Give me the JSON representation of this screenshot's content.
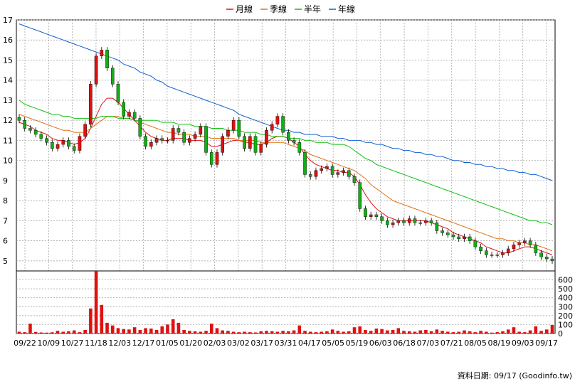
{
  "chart_data": [
    {
      "type": "candlestick",
      "title": "",
      "legend": {
        "placement": "top-center",
        "items": [
          {
            "label": "月線",
            "color": "#e01010"
          },
          {
            "label": "季線",
            "color": "#e07010"
          },
          {
            "label": "半年",
            "color": "#10c010"
          },
          {
            "label": "年線",
            "color": "#1060d0"
          }
        ]
      },
      "ylim": [
        4.5,
        17
      ],
      "yticks": [
        "5",
        "6",
        "7",
        "8",
        "9",
        "10",
        "11",
        "12",
        "13",
        "14",
        "15",
        "16",
        "17"
      ],
      "xticks": [
        "09/22",
        "10/09",
        "10/27",
        "11/18",
        "12/03",
        "12/17",
        "01/05",
        "01/20",
        "02/03",
        "03/02",
        "03/17",
        "03/31",
        "04/17",
        "05/05",
        "05/19",
        "06/03",
        "06/18",
        "07/03",
        "07/21",
        "08/05",
        "08/19",
        "09/03",
        "09/17"
      ],
      "grid": true,
      "up_color": "#e01010",
      "down_color": "#10b010",
      "price_close": [
        12.0,
        11.6,
        11.5,
        11.3,
        11.1,
        10.9,
        10.6,
        10.8,
        11.0,
        10.7,
        10.5,
        11.2,
        11.8,
        13.8,
        15.2,
        15.5,
        14.6,
        13.8,
        12.9,
        12.2,
        12.4,
        12.1,
        11.2,
        10.7,
        10.9,
        11.1,
        11.0,
        11.0,
        11.6,
        11.4,
        10.9,
        11.1,
        11.3,
        11.7,
        10.4,
        9.8,
        10.4,
        11.2,
        11.5,
        12.0,
        11.2,
        10.6,
        11.2,
        10.4,
        10.8,
        11.5,
        11.8,
        12.2,
        11.4,
        11.0,
        10.9,
        10.4,
        9.3,
        9.2,
        9.5,
        9.6,
        9.7,
        9.3,
        9.4,
        9.5,
        9.2,
        8.9,
        7.6,
        7.2,
        7.3,
        7.2,
        7.0,
        6.8,
        6.9,
        7.0,
        6.9,
        7.1,
        6.9,
        6.9,
        7.0,
        6.9,
        6.5,
        6.4,
        6.3,
        6.2,
        6.1,
        6.2,
        6.0,
        5.7,
        5.5,
        5.3,
        5.3,
        5.3,
        5.4,
        5.6,
        5.8,
        5.9,
        6.0,
        5.8,
        5.4,
        5.2,
        5.1,
        5.0
      ],
      "ma_month": [
        11.9,
        11.8,
        11.7,
        11.5,
        11.4,
        11.3,
        11.1,
        11.0,
        11.0,
        10.9,
        10.8,
        10.9,
        11.1,
        11.6,
        12.2,
        12.8,
        13.1,
        13.1,
        12.9,
        12.6,
        12.3,
        12.0,
        11.7,
        11.4,
        11.2,
        11.1,
        11.0,
        11.0,
        11.1,
        11.1,
        11.1,
        11.0,
        11.0,
        11.0,
        10.9,
        10.7,
        10.7,
        10.8,
        10.9,
        11.0,
        11.0,
        10.9,
        10.9,
        10.8,
        10.8,
        10.9,
        11.1,
        11.2,
        11.2,
        11.1,
        10.9,
        10.7,
        10.3,
        10.0,
        9.8,
        9.7,
        9.6,
        9.5,
        9.5,
        9.4,
        9.4,
        9.2,
        8.8,
        8.3,
        7.9,
        7.6,
        7.4,
        7.2,
        7.1,
        7.0,
        7.0,
        7.0,
        7.0,
        7.0,
        7.0,
        6.9,
        6.8,
        6.7,
        6.6,
        6.4,
        6.3,
        6.2,
        6.1,
        6.0,
        5.9,
        5.7,
        5.6,
        5.5,
        5.4,
        5.4,
        5.5,
        5.6,
        5.7,
        5.7,
        5.6,
        5.5,
        5.4,
        5.3
      ],
      "ma_quarter": [
        12.3,
        12.2,
        12.1,
        12.0,
        11.9,
        11.8,
        11.7,
        11.6,
        11.5,
        11.5,
        11.4,
        11.4,
        11.4,
        11.6,
        11.8,
        12.0,
        12.2,
        12.2,
        12.2,
        12.1,
        12.1,
        12.0,
        11.9,
        11.8,
        11.7,
        11.6,
        11.5,
        11.4,
        11.4,
        11.3,
        11.3,
        11.3,
        11.2,
        11.2,
        11.2,
        11.1,
        11.1,
        11.1,
        11.1,
        11.1,
        11.0,
        11.0,
        11.0,
        11.0,
        10.9,
        10.9,
        10.9,
        10.9,
        10.9,
        10.8,
        10.7,
        10.6,
        10.5,
        10.3,
        10.2,
        10.1,
        10.0,
        9.9,
        9.8,
        9.7,
        9.6,
        9.5,
        9.3,
        9.1,
        8.8,
        8.6,
        8.4,
        8.2,
        8.0,
        7.9,
        7.8,
        7.7,
        7.6,
        7.5,
        7.4,
        7.3,
        7.2,
        7.1,
        7.0,
        6.9,
        6.8,
        6.7,
        6.6,
        6.5,
        6.4,
        6.3,
        6.2,
        6.1,
        6.1,
        6.0,
        6.0,
        5.9,
        5.9,
        5.8,
        5.8,
        5.7,
        5.6,
        5.5
      ],
      "ma_half_year": [
        13.0,
        12.8,
        12.7,
        12.6,
        12.5,
        12.4,
        12.3,
        12.3,
        12.2,
        12.2,
        12.1,
        12.1,
        12.1,
        12.1,
        12.1,
        12.2,
        12.2,
        12.2,
        12.1,
        12.1,
        12.1,
        12.0,
        12.0,
        12.0,
        12.0,
        12.0,
        11.9,
        11.9,
        11.9,
        11.8,
        11.8,
        11.8,
        11.7,
        11.7,
        11.7,
        11.6,
        11.6,
        11.6,
        11.5,
        11.5,
        11.5,
        11.4,
        11.4,
        11.4,
        11.3,
        11.3,
        11.2,
        11.2,
        11.2,
        11.1,
        11.1,
        11.1,
        11.0,
        11.0,
        10.9,
        10.9,
        10.9,
        10.8,
        10.8,
        10.8,
        10.7,
        10.5,
        10.3,
        10.1,
        10.0,
        9.8,
        9.7,
        9.6,
        9.5,
        9.4,
        9.3,
        9.2,
        9.1,
        9.0,
        8.9,
        8.8,
        8.7,
        8.6,
        8.5,
        8.4,
        8.3,
        8.2,
        8.1,
        8.0,
        7.9,
        7.8,
        7.7,
        7.6,
        7.5,
        7.4,
        7.3,
        7.2,
        7.1,
        7.0,
        7.0,
        6.9,
        6.9,
        6.8
      ],
      "ma_year": [
        16.8,
        16.7,
        16.6,
        16.5,
        16.4,
        16.3,
        16.2,
        16.1,
        16.0,
        15.9,
        15.8,
        15.7,
        15.6,
        15.5,
        15.4,
        15.3,
        15.2,
        15.1,
        15.0,
        14.8,
        14.7,
        14.6,
        14.4,
        14.3,
        14.2,
        14.0,
        13.9,
        13.7,
        13.6,
        13.5,
        13.4,
        13.3,
        13.2,
        13.1,
        13.0,
        12.9,
        12.8,
        12.7,
        12.6,
        12.5,
        12.3,
        12.2,
        12.1,
        12.0,
        11.9,
        11.8,
        11.7,
        11.6,
        11.5,
        11.5,
        11.4,
        11.4,
        11.3,
        11.3,
        11.3,
        11.2,
        11.2,
        11.2,
        11.1,
        11.1,
        11.0,
        11.0,
        11.0,
        10.9,
        10.9,
        10.8,
        10.8,
        10.7,
        10.6,
        10.6,
        10.5,
        10.5,
        10.4,
        10.4,
        10.3,
        10.3,
        10.2,
        10.2,
        10.1,
        10.0,
        10.0,
        9.9,
        9.9,
        9.8,
        9.8,
        9.7,
        9.7,
        9.6,
        9.6,
        9.5,
        9.5,
        9.4,
        9.4,
        9.3,
        9.3,
        9.2,
        9.1,
        9.0
      ]
    },
    {
      "type": "bar",
      "title": "",
      "ylim": [
        0,
        700
      ],
      "yticks": [
        "0",
        "100",
        "200",
        "300",
        "400",
        "500",
        "600"
      ],
      "bar_color": "#e01010",
      "values": [
        20,
        15,
        110,
        18,
        12,
        10,
        14,
        30,
        20,
        25,
        35,
        15,
        40,
        280,
        700,
        320,
        120,
        90,
        60,
        50,
        45,
        70,
        40,
        60,
        55,
        40,
        80,
        100,
        160,
        120,
        40,
        30,
        25,
        20,
        30,
        110,
        60,
        35,
        30,
        20,
        15,
        20,
        15,
        12,
        25,
        30,
        25,
        20,
        30,
        25,
        35,
        90,
        30,
        20,
        15,
        20,
        25,
        45,
        30,
        20,
        25,
        70,
        80,
        40,
        30,
        55,
        50,
        35,
        40,
        60,
        30,
        25,
        20,
        35,
        40,
        25,
        45,
        30,
        20,
        15,
        20,
        35,
        25,
        15,
        30,
        20,
        10,
        15,
        25,
        45,
        70,
        20,
        15,
        35,
        80,
        30,
        45,
        95
      ]
    }
  ],
  "footer": {
    "text": "資料日期: 09/17 (Goodinfo.tw)"
  }
}
